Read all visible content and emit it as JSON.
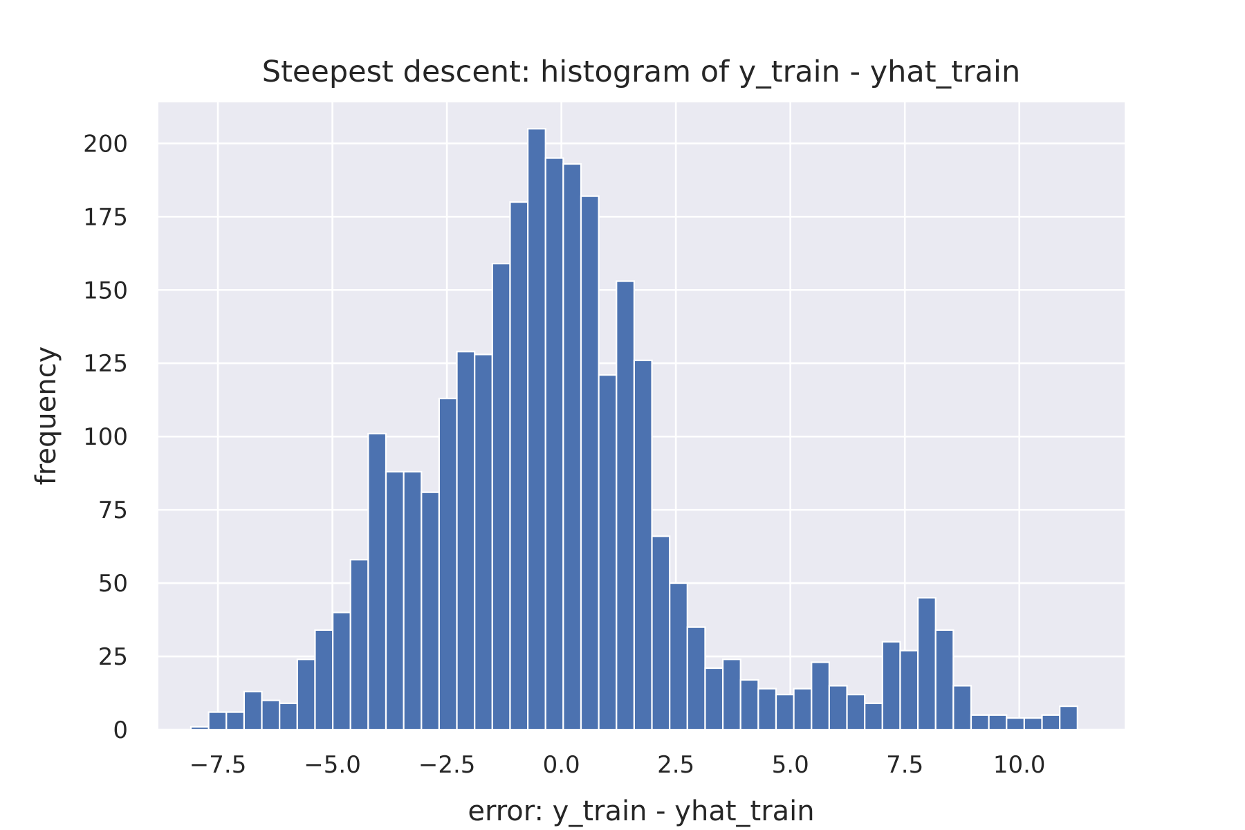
{
  "chart_data": {
    "type": "bar",
    "title": "Steepest descent: histogram of y_train - yhat_train",
    "xlabel": "error: y_train - yhat_train",
    "ylabel": "frequency",
    "xlim": [
      -8.8,
      12.3
    ],
    "ylim": [
      0,
      214
    ],
    "grid": true,
    "legend": "none",
    "colors": {
      "bar": "#4c72b0",
      "plot_background": "#eaeaf2",
      "grid": "#ffffff"
    },
    "x_ticks": [
      -7.5,
      -5.0,
      -2.5,
      0.0,
      2.5,
      5.0,
      7.5,
      10.0
    ],
    "x_tick_labels": [
      "−7.5",
      "−5.0",
      "−2.5",
      "0.0",
      "2.5",
      "5.0",
      "7.5",
      "10.0"
    ],
    "y_ticks": [
      0,
      25,
      50,
      75,
      100,
      125,
      150,
      175,
      200
    ],
    "y_tick_labels": [
      "0",
      "25",
      "50",
      "75",
      "100",
      "125",
      "150",
      "175",
      "200"
    ],
    "bin_start": -8.09,
    "bin_width": 0.3872,
    "values": [
      1,
      6,
      6,
      13,
      10,
      9,
      24,
      34,
      40,
      58,
      101,
      88,
      88,
      81,
      113,
      129,
      128,
      159,
      180,
      205,
      195,
      193,
      182,
      121,
      153,
      126,
      66,
      50,
      35,
      21,
      24,
      17,
      14,
      12,
      14,
      23,
      15,
      12,
      9,
      30,
      27,
      45,
      34,
      15,
      5,
      5,
      4,
      4,
      5,
      8
    ]
  }
}
